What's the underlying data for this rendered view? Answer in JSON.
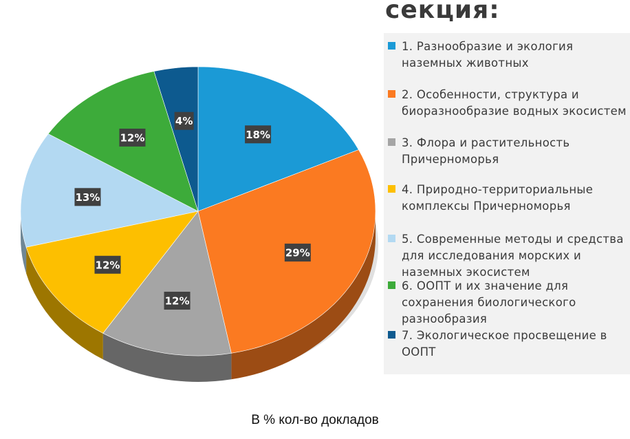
{
  "title": "секция:",
  "caption": "В % кол-во докладов",
  "chart_data": {
    "type": "pie",
    "style": "3d",
    "legend_position": "right",
    "slices": [
      {
        "label": "1. Разнообразие и экология наземных животных",
        "value": 18,
        "display": "18%",
        "color": "#1b9ad6"
      },
      {
        "label": "2. Особенности, структура и биоразнообразие водных экосистем",
        "value": 29,
        "display": "29%",
        "color": "#fb7a21"
      },
      {
        "label": "3. Флора и растительность Причерноморья",
        "value": 12,
        "display": "12%",
        "color": "#a5a5a5"
      },
      {
        "label": "4. Природно-территориальные комплексы Причерноморья",
        "value": 12,
        "display": "12%",
        "color": "#fdbf00"
      },
      {
        "label": "5. Современные  методы и средства для исследования морских и наземных экосистем",
        "value": 13,
        "display": "13%",
        "color": "#b3d9f2"
      },
      {
        "label": "6. ООПТ и их значение для сохранения биологического разнообразия",
        "value": 12,
        "display": "12%",
        "color": "#3dab3a"
      },
      {
        "label": "7. Экологическое просвещение в ООПТ",
        "value": 4,
        "display": "4%",
        "color": "#0d5a8f"
      }
    ]
  }
}
